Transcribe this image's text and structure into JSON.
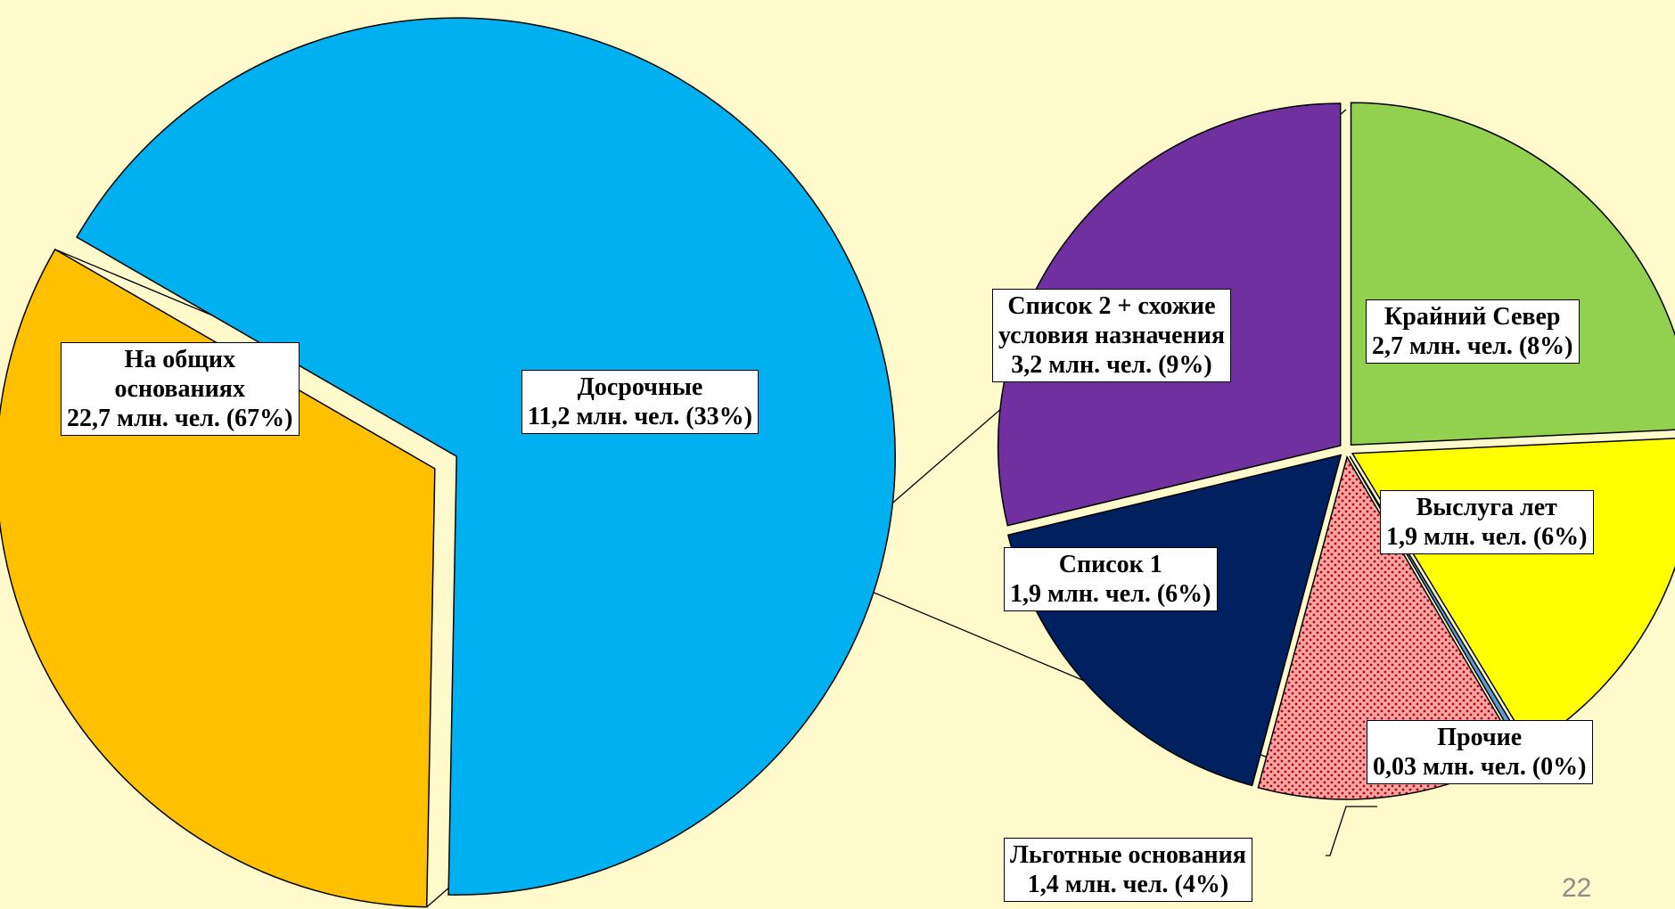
{
  "page_number": "22",
  "chart_data": {
    "type": "pie",
    "title": "",
    "unit": "млн. чел.",
    "main_pie": {
      "slices": [
        {
          "id": "general",
          "label_lines": [
            "На общих",
            "основаниях"
          ],
          "value_text": "22,7 млн. чел. (67%)",
          "value": 22.7,
          "percent": 67,
          "color": "#00B0F0"
        },
        {
          "id": "early",
          "label_lines": [
            "Досрочные"
          ],
          "value_text": "11,2 млн. чел. (33%)",
          "value": 11.2,
          "percent": 33,
          "color": "#FFC000"
        }
      ]
    },
    "breakdown_of": "early",
    "breakdown_pie": {
      "slices": [
        {
          "id": "north",
          "label_lines": [
            "Крайний Север"
          ],
          "value_text": "2,7 млн. чел. (8%)",
          "value": 2.7,
          "percent": 8,
          "color": "#92D050"
        },
        {
          "id": "service",
          "label_lines": [
            "Выслуга лет"
          ],
          "value_text": "1,9 млн. чел. (6%)",
          "value": 1.9,
          "percent": 6,
          "color": "#FFFF00"
        },
        {
          "id": "other",
          "label_lines": [
            "Прочие"
          ],
          "value_text": "0,03 млн. чел. (0%)",
          "value": 0.03,
          "percent": 0,
          "color": "#5B9BD5"
        },
        {
          "id": "preferential",
          "label_lines": [
            "Льготные основания"
          ],
          "value_text": "1,4 млн. чел. (4%)",
          "value": 1.4,
          "percent": 4,
          "color": "#F4A6A6",
          "pattern": "dotted"
        },
        {
          "id": "list1",
          "label_lines": [
            "Список 1"
          ],
          "value_text": "1,9 млн. чел. (6%)",
          "value": 1.9,
          "percent": 6,
          "color": "#002060"
        },
        {
          "id": "list2",
          "label_lines": [
            "Список 2 + схожие",
            "условия назначения"
          ],
          "value_text": "3,2 млн. чел. (9%)",
          "value": 3.2,
          "percent": 9,
          "color": "#7030A0"
        }
      ]
    }
  }
}
